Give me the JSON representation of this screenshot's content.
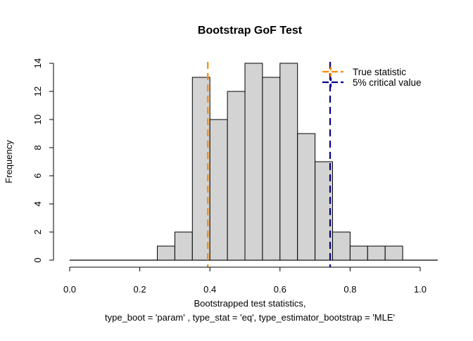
{
  "chart_data": {
    "type": "bar",
    "title": "Bootstrap GoF Test",
    "xlabel_line1": "Bootstrapped test statistics,",
    "xlabel_line2": "type_boot = 'param' , type_stat = 'eq', type_estimator_bootstrap = 'MLE'",
    "ylabel": "Frequency",
    "bin_width": 0.05,
    "bin_starts": [
      0.25,
      0.3,
      0.35,
      0.4,
      0.45,
      0.5,
      0.55,
      0.6,
      0.65,
      0.7,
      0.75,
      0.8,
      0.85,
      0.9
    ],
    "values": [
      1,
      2,
      13,
      10,
      12,
      14,
      13,
      14,
      9,
      7,
      2,
      1,
      1,
      1
    ],
    "empty_range": [
      0.0,
      1.05
    ],
    "xlim": [
      0,
      1.05
    ],
    "ylim": [
      0,
      14
    ],
    "xticks": [
      "0.0",
      "0.2",
      "0.4",
      "0.6",
      "0.8",
      "1.0"
    ],
    "yticks": [
      "0",
      "2",
      "4",
      "6",
      "8",
      "10",
      "12",
      "14"
    ],
    "bar_color": "#D3D3D3",
    "grid": false,
    "legend_position": "top-right",
    "vlines": [
      {
        "name": "True statistic",
        "x": 0.394,
        "color": "#FF8C00"
      },
      {
        "name": "5% critical value",
        "x": 0.743,
        "color": "#00008B"
      }
    ]
  }
}
